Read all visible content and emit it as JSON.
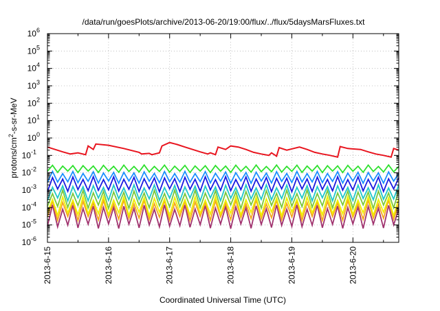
{
  "chart_data": {
    "type": "line",
    "title": "/data/run/goesPlots/archive/2013-06-20/19:00/flux/../flux/5daysMarsFluxes.txt",
    "xlabel": "Coordinated Universal Time (UTC)",
    "ylabel": {
      "pre": "protons/cm",
      "sup": "2",
      "post": "-s-sr-MeV"
    },
    "y_scale": "log",
    "ylim": [
      1e-06,
      1000000.0
    ],
    "xlim": [
      "2013-06-15",
      "2013-06-20 18:00"
    ],
    "x_ticks": [
      "2013-6-15",
      "2013-6-16",
      "2013-6-17",
      "2013-6-18",
      "2013-6-19",
      "2013-6-20"
    ],
    "y_ticks": [
      {
        "base": "10",
        "exp": "-6"
      },
      {
        "base": "10",
        "exp": "-5"
      },
      {
        "base": "10",
        "exp": "-4"
      },
      {
        "base": "10",
        "exp": "-3"
      },
      {
        "base": "10",
        "exp": "-2"
      },
      {
        "base": "10",
        "exp": "-1"
      },
      {
        "base": "10",
        "exp": "0"
      },
      {
        "base": "10",
        "exp": "1"
      },
      {
        "base": "10",
        "exp": "2"
      },
      {
        "base": "10",
        "exp": "3"
      },
      {
        "base": "10",
        "exp": "4"
      },
      {
        "base": "10",
        "exp": "5"
      },
      {
        "base": "10",
        "exp": "6"
      }
    ],
    "grid": true,
    "series": [
      {
        "color": "#e8141e",
        "x": [
          "2013-06-15 00:00",
          "2013-06-15 03:00",
          "2013-06-15 06:00",
          "2013-06-15 09:00",
          "2013-06-15 12:00",
          "2013-06-15 15:00",
          "2013-06-15 16:00",
          "2013-06-15 18:00",
          "2013-06-15 19:00",
          "2013-06-16 00:00",
          "2013-06-16 06:00",
          "2013-06-16 12:00",
          "2013-06-16 13:00",
          "2013-06-16 16:00",
          "2013-06-16 17:00",
          "2013-06-16 20:00",
          "2013-06-16 21:00",
          "2013-06-17 00:00",
          "2013-06-17 03:00",
          "2013-06-17 06:00",
          "2013-06-17 09:00",
          "2013-06-17 12:00",
          "2013-06-17 15:00",
          "2013-06-17 16:00",
          "2013-06-17 18:00",
          "2013-06-17 19:00",
          "2013-06-17 22:00",
          "2013-06-18 00:00",
          "2013-06-18 03:00",
          "2013-06-18 06:00",
          "2013-06-18 09:00",
          "2013-06-18 12:00",
          "2013-06-18 15:00",
          "2013-06-18 16:00",
          "2013-06-18 18:00",
          "2013-06-18 19:00",
          "2013-06-18 22:00",
          "2013-06-19 03:00",
          "2013-06-19 06:00",
          "2013-06-19 09:00",
          "2013-06-19 12:00",
          "2013-06-19 15:00",
          "2013-06-19 18:00",
          "2013-06-19 19:00",
          "2013-06-19 22:00",
          "2013-06-20 03:00",
          "2013-06-20 06:00",
          "2013-06-20 09:00",
          "2013-06-20 12:00",
          "2013-06-20 15:00",
          "2013-06-20 16:00",
          "2013-06-20 18:00"
        ],
        "values": [
          0.3,
          0.22,
          0.16,
          0.12,
          0.14,
          0.11,
          0.35,
          0.22,
          0.45,
          0.38,
          0.25,
          0.15,
          0.12,
          0.13,
          0.11,
          0.14,
          0.35,
          0.55,
          0.42,
          0.3,
          0.22,
          0.16,
          0.12,
          0.14,
          0.11,
          0.3,
          0.22,
          0.35,
          0.3,
          0.22,
          0.15,
          0.12,
          0.1,
          0.14,
          0.09,
          0.28,
          0.2,
          0.3,
          0.22,
          0.15,
          0.12,
          0.1,
          0.08,
          0.32,
          0.25,
          0.22,
          0.16,
          0.12,
          0.1,
          0.08,
          0.25,
          0.2
        ]
      },
      {
        "color": "#2ee02e",
        "center": 0.017,
        "amp": 0.35,
        "period_h": 4,
        "trend": 0
      },
      {
        "color": "#1a8fff",
        "center": 0.0055,
        "amp": 0.55,
        "period_h": 4,
        "trend": 0
      },
      {
        "color": "#1a1ae0",
        "center": 0.0022,
        "amp": 0.7,
        "period_h": 4,
        "trend": 0
      },
      {
        "color": "#20c8c8",
        "center": 0.0007,
        "amp": 0.75,
        "period_h": 4,
        "trend": 0
      },
      {
        "color": "#7ac83a",
        "center": 0.0003,
        "amp": 0.85,
        "period_h": 4,
        "trend": 0
      },
      {
        "color": "#f0f000",
        "center": 0.00012,
        "amp": 0.9,
        "period_h": 4,
        "trend": 0
      },
      {
        "color": "#f5a51e",
        "center": 7e-05,
        "amp": 0.95,
        "period_h": 4,
        "trend": 0
      },
      {
        "color": "#a0326e",
        "center": 3e-05,
        "amp": 1.1,
        "period_h": 4,
        "trend": 0
      }
    ]
  }
}
